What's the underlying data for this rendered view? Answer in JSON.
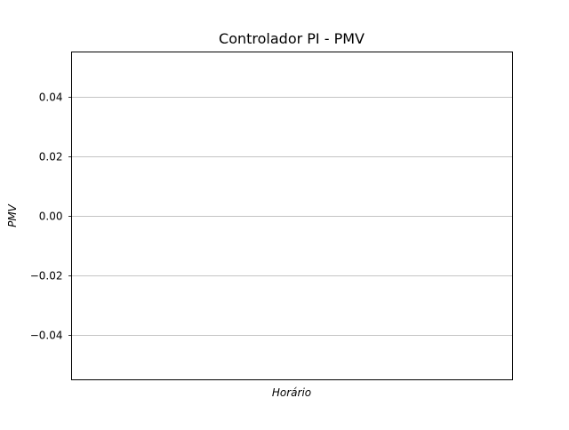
{
  "chart_data": {
    "type": "line",
    "title": "Controlador PI - PMV",
    "xlabel": "Horário",
    "ylabel": "PMV",
    "ylim": [
      -0.055,
      0.055
    ],
    "yticks": [
      -0.04,
      -0.02,
      0.0,
      0.02,
      0.04
    ],
    "ytick_labels": [
      "−0.04",
      "−0.02",
      "0.00",
      "0.02",
      "0.04"
    ],
    "grid": true,
    "series": [],
    "colors": {
      "grid": "#b0b0b0",
      "axes": "#000000",
      "background": "#ffffff"
    }
  }
}
